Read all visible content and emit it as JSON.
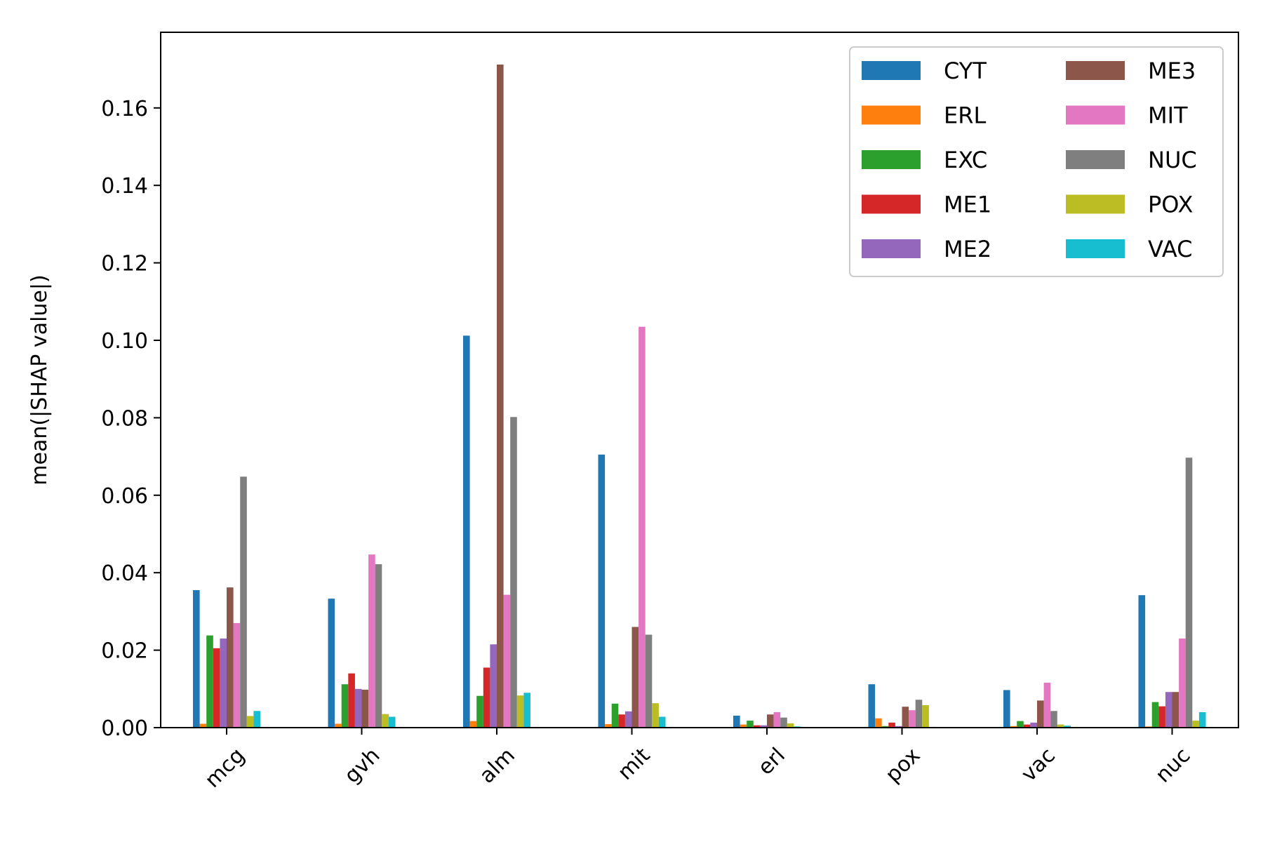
{
  "chart_data": {
    "type": "bar",
    "title": "",
    "xlabel": "",
    "ylabel": "mean(|SHAP value|)",
    "ylim": [
      0,
      0.18
    ],
    "yticks": [
      "0.00",
      "0.02",
      "0.04",
      "0.06",
      "0.08",
      "0.10",
      "0.12",
      "0.14",
      "0.16"
    ],
    "grid": false,
    "legend_position": "top-right",
    "categories": [
      "mcg",
      "gvh",
      "alm",
      "mit",
      "erl",
      "pox",
      "vac",
      "nuc"
    ],
    "series": [
      {
        "name": "CYT",
        "color": "#1f77b4",
        "values": [
          0.0355,
          0.0333,
          0.1012,
          0.0705,
          0.0031,
          0.0112,
          0.0097,
          0.0342
        ]
      },
      {
        "name": "ERL",
        "color": "#ff7f0e",
        "values": [
          0.001,
          0.001,
          0.0017,
          0.0009,
          0.0008,
          0.0024,
          0.0004,
          0.0003
        ]
      },
      {
        "name": "EXC",
        "color": "#2ca02c",
        "values": [
          0.0238,
          0.0112,
          0.0082,
          0.0062,
          0.0018,
          0.0004,
          0.0017,
          0.0066
        ]
      },
      {
        "name": "ME1",
        "color": "#d62728",
        "values": [
          0.0205,
          0.014,
          0.0155,
          0.0034,
          0.0006,
          0.0013,
          0.0008,
          0.0055
        ]
      },
      {
        "name": "ME2",
        "color": "#9467bd",
        "values": [
          0.023,
          0.01,
          0.0215,
          0.0042,
          0.0006,
          0.0004,
          0.0013,
          0.0092
        ]
      },
      {
        "name": "ME3",
        "color": "#8c564b",
        "values": [
          0.0362,
          0.0098,
          0.1712,
          0.026,
          0.0034,
          0.0054,
          0.007,
          0.0092
        ]
      },
      {
        "name": "MIT",
        "color": "#e377c2",
        "values": [
          0.027,
          0.0447,
          0.0343,
          0.1035,
          0.004,
          0.0045,
          0.0116,
          0.023
        ]
      },
      {
        "name": "NUC",
        "color": "#7f7f7f",
        "values": [
          0.0648,
          0.0422,
          0.0802,
          0.024,
          0.0026,
          0.0072,
          0.0043,
          0.0697
        ]
      },
      {
        "name": "POX",
        "color": "#bcbd22",
        "values": [
          0.003,
          0.0035,
          0.0083,
          0.0063,
          0.0011,
          0.0058,
          0.0008,
          0.0018
        ]
      },
      {
        "name": "VAC",
        "color": "#17becf",
        "values": [
          0.0043,
          0.0028,
          0.009,
          0.0028,
          0.0003,
          0.0002,
          0.0005,
          0.004
        ]
      }
    ]
  }
}
